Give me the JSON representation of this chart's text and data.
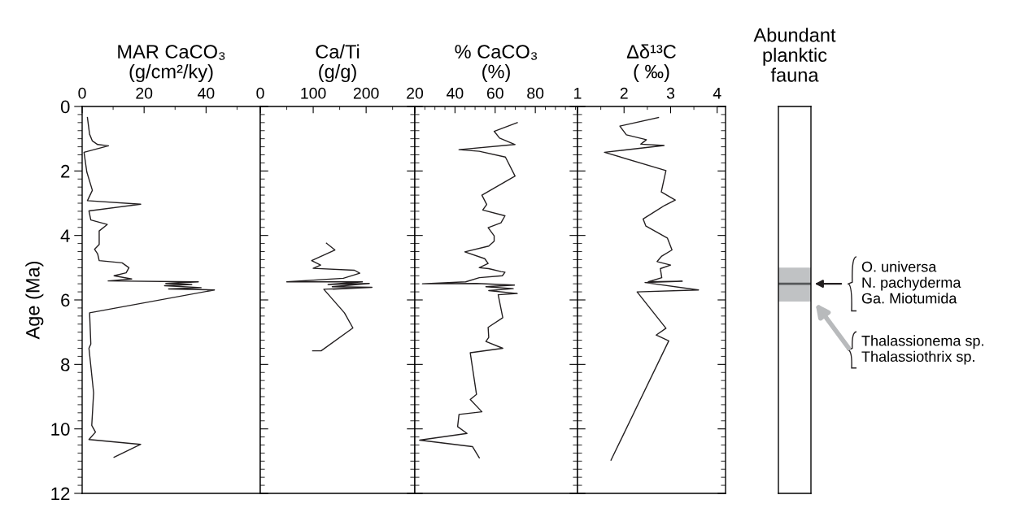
{
  "chart_data": [
    {
      "type": "line",
      "xlabel": "MAR CaCO₃\n(g/cm²/ky)",
      "ylabel": "Age (Ma)",
      "xlim": [
        0,
        57.5
      ],
      "xticks": [
        0,
        20,
        40
      ],
      "ylim": [
        12,
        0
      ],
      "yticks": [
        0,
        2,
        4,
        6,
        8,
        10,
        12
      ],
      "marker": "none",
      "line_style": "solid",
      "grid": false,
      "legend": false,
      "series": [
        {
          "color": "#231f20",
          "x": [
            1.7,
            2.4,
            3.3,
            5.0,
            8.5,
            0.6,
            1.5,
            3.3,
            1.7,
            18.9,
            2.2,
            2.8,
            8.1,
            5.5,
            5.5,
            4.0,
            5.0,
            5.5,
            12.9,
            15.1,
            14.2,
            10.3,
            16.0,
            8.4,
            37.5,
            27,
            35.4,
            26.6,
            38.4,
            27.9,
            42.7,
            2.4,
            2.8,
            2.2,
            3.7,
            3.4,
            3.1,
            4.3,
            2.2,
            18.9,
            10.3
          ],
          "values": [
            0.34,
            0.86,
            1.07,
            1.18,
            1.22,
            1.42,
            2.03,
            2.6,
            2.92,
            3.03,
            3.24,
            3.52,
            3.66,
            3.86,
            4.28,
            4.43,
            4.57,
            4.78,
            4.85,
            5.0,
            5.16,
            5.25,
            5.35,
            5.41,
            5.44,
            5.49,
            5.52,
            5.56,
            5.62,
            5.66,
            5.69,
            6.4,
            7.37,
            7.5,
            8.88,
            9.39,
            9.89,
            10.1,
            10.33,
            10.48,
            10.88
          ]
        }
      ]
    },
    {
      "type": "line",
      "xlabel": "Ca/Ti\n(g/g)",
      "xlim": [
        0,
        292
      ],
      "xticks": [
        0,
        100,
        200
      ],
      "ylim": [
        12,
        0
      ],
      "yticks": [
        0,
        2,
        4,
        6,
        8,
        10,
        12
      ],
      "tick_labels": "x",
      "marker": "none",
      "line_style": "solid",
      "grid": false,
      "legend": false,
      "series": [
        {
          "color": "#231f20",
          "x": [
            125,
            141,
            97,
            114,
            100,
            178,
            188,
            157,
            50,
            193,
            128,
            206,
            136,
            211,
            138,
            188,
            120,
            159,
            175,
            115,
            99
          ],
          "values": [
            4.24,
            4.45,
            4.78,
            4.92,
            5.02,
            5.08,
            5.17,
            5.33,
            5.44,
            5.44,
            5.52,
            5.49,
            5.59,
            5.61,
            5.67,
            5.62,
            5.67,
            6.4,
            6.87,
            7.58,
            7.58
          ]
        }
      ]
    },
    {
      "type": "line",
      "xlabel": "% CaCO₃\n(%)",
      "xlim": [
        20,
        101
      ],
      "xticks": [
        20,
        40,
        60,
        80
      ],
      "ylim": [
        12,
        0
      ],
      "yticks": [
        0,
        2,
        4,
        6,
        8,
        10,
        12
      ],
      "tick_labels": "x",
      "marker": "none",
      "line_style": "solid",
      "grid": false,
      "legend": false,
      "series": [
        {
          "color": "#231f20",
          "x": [
            71,
            59.5,
            62.2,
            69.9,
            42,
            52.1,
            65.1,
            69.9,
            53.4,
            55.8,
            53.8,
            64.9,
            62.9,
            56.5,
            59.5,
            59.5,
            56.8,
            44.9,
            54.8,
            56.5,
            52.1,
            56.8,
            62.9,
            64.9,
            63.6,
            52.1,
            45.3,
            23.8,
            50.7,
            69.6,
            55.4,
            69,
            56.8,
            71,
            61.5,
            63.8,
            56.5,
            56.8,
            55.4,
            63.8,
            47.6,
            50.7,
            47.6,
            53.4,
            42,
            41.3,
            46,
            22.4,
            48.7,
            52.1
          ],
          "values": [
            0.5,
            0.77,
            0.98,
            1.18,
            1.34,
            1.39,
            1.57,
            2.16,
            2.75,
            3.04,
            3.21,
            3.39,
            3.61,
            3.76,
            4.01,
            4.18,
            4.33,
            4.51,
            4.72,
            4.87,
            5.0,
            5.03,
            5.12,
            5.14,
            5.25,
            5.31,
            5.44,
            5.5,
            5.49,
            5.54,
            5.59,
            5.65,
            5.71,
            5.8,
            5.84,
            6.55,
            6.85,
            7.16,
            7.29,
            7.5,
            7.64,
            8.93,
            9.09,
            9.47,
            9.55,
            9.93,
            10.14,
            10.35,
            10.55,
            10.9
          ]
        }
      ]
    },
    {
      "type": "line",
      "xlabel": "Δδ¹³C\n( ‰)",
      "xlim": [
        1,
        4.18
      ],
      "xticks": [
        1,
        2,
        3,
        4
      ],
      "ylim": [
        12,
        0
      ],
      "yticks": [
        0,
        2,
        4,
        6,
        8,
        10,
        12
      ],
      "tick_labels": "x",
      "marker": "none",
      "line_style": "solid",
      "grid": false,
      "legend": false,
      "series": [
        {
          "color": "#231f20",
          "x": [
            2.74,
            1.91,
            2.05,
            2.48,
            2.36,
            2.86,
            1.58,
            2.9,
            2.8,
            3.1,
            2.87,
            2.41,
            2.47,
            2.93,
            3.03,
            2.81,
            2.71,
            3.0,
            2.78,
            2.81,
            2.52,
            3.25,
            2.45,
            3.6,
            2.28,
            2.9,
            2.69,
            2.96,
            1.72
          ],
          "values": [
            0.34,
            0.61,
            0.88,
            1.03,
            1.17,
            1.21,
            1.42,
            1.99,
            2.65,
            2.9,
            3.07,
            3.49,
            3.71,
            4.08,
            4.45,
            4.64,
            4.81,
            4.92,
            5.03,
            5.31,
            5.44,
            5.42,
            5.46,
            5.69,
            5.75,
            6.88,
            7.09,
            7.27,
            10.97
          ]
        }
      ]
    },
    {
      "type": "bar",
      "xlabel": "Abundant\nplanktic\nfauna",
      "ylim": [
        12,
        0
      ],
      "tick_labels": false,
      "categories": [
        null
      ],
      "base": [
        5.0
      ],
      "values": [
        1.05
      ],
      "colors": [
        "#c0c2c4"
      ],
      "ref_lines": [
        {
          "axis": "y",
          "value": 5.5,
          "color": "#555759"
        }
      ],
      "annotations": [
        "O. universa\nN. pachyderma\nGa. Miotumida",
        "Thalassionema sp.\nThalassiothrix sp."
      ]
    }
  ]
}
